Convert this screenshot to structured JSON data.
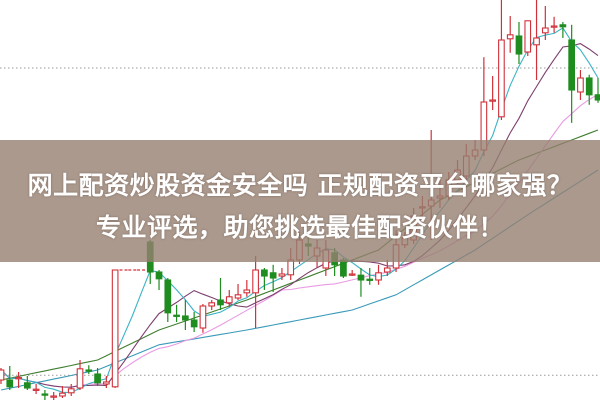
{
  "banner": {
    "line1": "网上配资炒股资金安全吗 正规配资平台哪家强？",
    "line2": "专业评选，助您挑选最佳配资伙伴！"
  },
  "colors": {
    "up": "#d0313a",
    "down": "#1e8c1e",
    "ma_short": "#3ab4c4",
    "ma_mid": "#7d3f6e",
    "ma_long": "#e99be3",
    "ma_green": "#3f7f2f",
    "ma_blue": "#3a9ab8",
    "grid": "#9a9a9a",
    "banner": "#96806f"
  },
  "chart_data": {
    "type": "candlestick",
    "title": "",
    "xlabel": "",
    "ylabel": "",
    "ylim": [
      0,
      100
    ],
    "grid": "dotted horizontal",
    "gridlines": [
      83,
      6.2
    ],
    "candles": [
      [
        5,
        7.5,
        8,
        4
      ],
      [
        5,
        3.3,
        8.5,
        2.5
      ],
      [
        5.3,
        5.6,
        7,
        3
      ],
      [
        4.3,
        3,
        6,
        2.5
      ],
      [
        2.5,
        2.7,
        4,
        1.5
      ],
      [
        1.5,
        1.2,
        2.5,
        0
      ],
      [
        0.7,
        1,
        2,
        0
      ],
      [
        1,
        1.7,
        3.5,
        0.5
      ],
      [
        1.8,
        2.8,
        4,
        1
      ],
      [
        3,
        7.8,
        10,
        2.5
      ],
      [
        7.5,
        7.2,
        8.7,
        6.5
      ],
      [
        6.5,
        4.3,
        8,
        3.5
      ],
      [
        4,
        4.5,
        6,
        3
      ],
      [
        3.3,
        32.5,
        32.5,
        3
      ],
      [
        32.5,
        32.5,
        32.5,
        32.5
      ],
      [
        32.5,
        32.5,
        32.5,
        32.5
      ],
      [
        32.5,
        32.5,
        32.5,
        32.5
      ],
      [
        39.5,
        32,
        40,
        29
      ],
      [
        32,
        30.3,
        32.5,
        27.5
      ],
      [
        30,
        21.8,
        30.5,
        19.5
      ],
      [
        21.2,
        21,
        23.8,
        19.5
      ],
      [
        21,
        20,
        25,
        17.5
      ],
      [
        20,
        18.3,
        22,
        17
      ],
      [
        18,
        23.5,
        24,
        16.8
      ],
      [
        23.5,
        24.3,
        25,
        22.5
      ],
      [
        25,
        23.8,
        30.5,
        22.5
      ],
      [
        24.3,
        25.8,
        27.5,
        23.3
      ],
      [
        25.5,
        26.3,
        29,
        25
      ],
      [
        26.8,
        27.5,
        30,
        25.8
      ],
      [
        26.8,
        32.5,
        36,
        18
      ],
      [
        32.5,
        31,
        33,
        27.5
      ],
      [
        31.8,
        30.5,
        33.8,
        27
      ],
      [
        31,
        31.5,
        33,
        30
      ],
      [
        31.3,
        35,
        38,
        30
      ],
      [
        35,
        40,
        42,
        34
      ],
      [
        39,
        38.5,
        41,
        36
      ],
      [
        36,
        38,
        40,
        33
      ],
      [
        33,
        37.5,
        40,
        31
      ],
      [
        36.8,
        33.8,
        38,
        31
      ],
      [
        35,
        31,
        35.5,
        30.5
      ],
      [
        31.2,
        31.5,
        32.5,
        31
      ],
      [
        31.2,
        30,
        33,
        25.8
      ],
      [
        30.2,
        30,
        33,
        28.8
      ],
      [
        30,
        31.8,
        33.8,
        28.8
      ],
      [
        32,
        33,
        35,
        31
      ],
      [
        33,
        38.8,
        42.5,
        32
      ],
      [
        38.8,
        40.5,
        42,
        38
      ],
      [
        40,
        46,
        48,
        39
      ],
      [
        48,
        48.3,
        51,
        45
      ],
      [
        48.5,
        50,
        67.5,
        40
      ],
      [
        50.5,
        51,
        55,
        48
      ],
      [
        51,
        55,
        57,
        50
      ],
      [
        55,
        57.5,
        60,
        54
      ],
      [
        56,
        61,
        64,
        55
      ],
      [
        61,
        62.5,
        65,
        60
      ],
      [
        62.5,
        74.5,
        85.7,
        61
      ],
      [
        74.8,
        75,
        81,
        72.5
      ],
      [
        70.8,
        90,
        100,
        70
      ],
      [
        90.3,
        91.3,
        96,
        86.8
      ],
      [
        91,
        86.5,
        94.5,
        84
      ],
      [
        87,
        94.8,
        94.8,
        86
      ],
      [
        88.8,
        90.5,
        100,
        80
      ],
      [
        91.8,
        93,
        98.5,
        90
      ],
      [
        93.5,
        93.5,
        95.8,
        91.8
      ],
      [
        93.8,
        93.3,
        94.5,
        90.5
      ],
      [
        90,
        77.5,
        93.8,
        69.3
      ],
      [
        77,
        80.5,
        82.5,
        75
      ],
      [
        80.5,
        76.3,
        81.3,
        73.8
      ],
      [
        76.3,
        75,
        80.5,
        74.3
      ]
    ],
    "candle_fields": [
      "open",
      "close",
      "high",
      "low"
    ],
    "moving_averages": {
      "short_period": 5,
      "mid_period": 10,
      "long_period": 20,
      "green_line": [
        [
          0,
          5
        ],
        [
          11,
          10
        ],
        [
          18,
          17.5
        ],
        [
          28,
          25
        ],
        [
          37,
          32.5
        ],
        [
          43,
          37.5
        ],
        [
          50,
          50
        ],
        [
          59,
          60
        ],
        [
          68,
          67.5
        ]
      ],
      "blue_line": [
        [
          0,
          2.5
        ],
        [
          11,
          7.5
        ],
        [
          18,
          13.8
        ],
        [
          28,
          17.5
        ],
        [
          40,
          22.5
        ],
        [
          45,
          26.3
        ],
        [
          54,
          37.5
        ],
        [
          60,
          46.3
        ],
        [
          68,
          57.5
        ]
      ]
    }
  }
}
